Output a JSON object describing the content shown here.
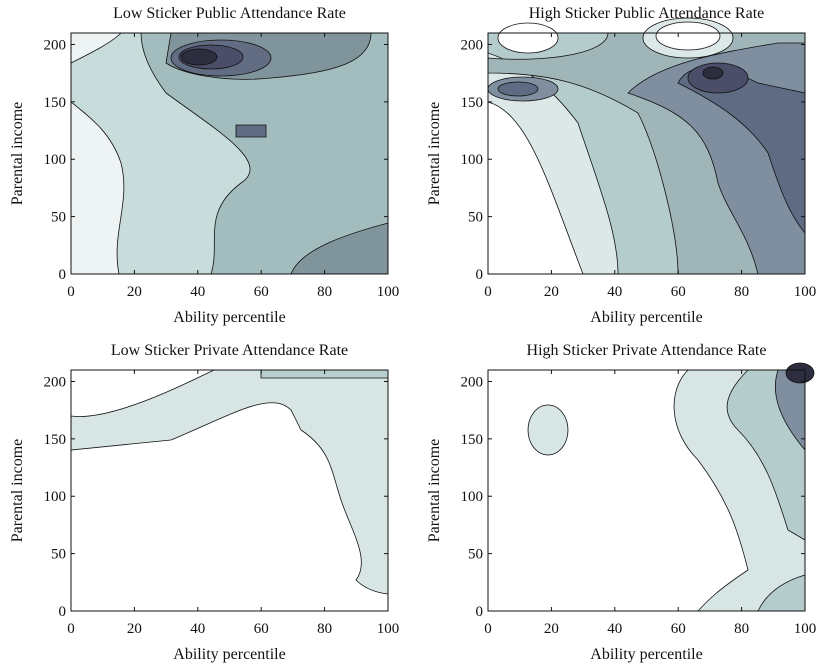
{
  "chart_data": [
    {
      "type": "contour",
      "title": "Low Sticker Public Attendance Rate",
      "xlabel": "Ability percentile",
      "ylabel": "Parental income",
      "xlim": [
        0,
        100
      ],
      "ylim": [
        0,
        210
      ],
      "xticks": [
        0,
        20,
        40,
        60,
        80,
        100
      ],
      "yticks": [
        0,
        50,
        100,
        150,
        200
      ]
    },
    {
      "type": "contour",
      "title": "High Sticker Public Attendance Rate",
      "xlabel": "Ability percentile",
      "ylabel": "Parental income",
      "xlim": [
        0,
        100
      ],
      "ylim": [
        0,
        210
      ],
      "xticks": [
        0,
        20,
        40,
        60,
        80,
        100
      ],
      "yticks": [
        0,
        50,
        100,
        150,
        200
      ]
    },
    {
      "type": "contour",
      "title": "Low Sticker Private Attendance Rate",
      "xlabel": "Ability percentile",
      "ylabel": "Parental income",
      "xlim": [
        0,
        100
      ],
      "ylim": [
        0,
        210
      ],
      "xticks": [
        0,
        20,
        40,
        60,
        80,
        100
      ],
      "yticks": [
        0,
        50,
        100,
        150,
        200
      ]
    },
    {
      "type": "contour",
      "title": "High Sticker Private Attendance Rate",
      "xlabel": "Ability percentile",
      "ylabel": "Parental income",
      "xlim": [
        0,
        100
      ],
      "ylim": [
        0,
        210
      ],
      "xticks": [
        0,
        20,
        40,
        60,
        80,
        100
      ],
      "yticks": [
        0,
        50,
        100,
        150,
        200
      ]
    }
  ]
}
